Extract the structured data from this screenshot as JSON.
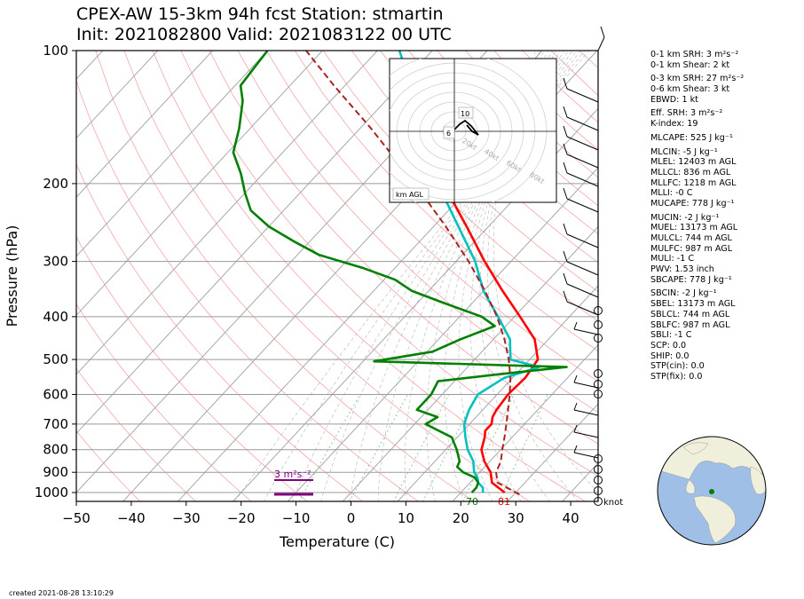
{
  "header": {
    "title_line1": "CPEX-AW 15-3km  94h fcst  Station: stmartin",
    "title_line2": "Init: 2021082800  Valid: 2021083122 00 UTC"
  },
  "chart_data": {
    "type": "skew-t",
    "xlabel": "Temperature (C)",
    "ylabel": "Pressure (hPa)",
    "xlim": [
      -50,
      45
    ],
    "ylim": [
      1050,
      100
    ],
    "y_scale": "log",
    "x_ticks": [
      "−50",
      "−40",
      "−30",
      "−20",
      "−10",
      "0",
      "10",
      "20",
      "30",
      "40"
    ],
    "y_ticks": [
      "100",
      "200",
      "300",
      "400",
      "500",
      "600",
      "700",
      "800",
      "900",
      "1000"
    ],
    "y_tick_values": [
      100,
      200,
      300,
      400,
      500,
      600,
      700,
      800,
      900,
      1000
    ],
    "series": [
      {
        "key": "temperature",
        "color": "#ff0000",
        "points": [
          [
            1000,
            28
          ],
          [
            975,
            26
          ],
          [
            950,
            24
          ],
          [
            925,
            23
          ],
          [
            900,
            22
          ],
          [
            875,
            20.5
          ],
          [
            850,
            19
          ],
          [
            800,
            16.5
          ],
          [
            750,
            15
          ],
          [
            725,
            14
          ],
          [
            700,
            14
          ],
          [
            675,
            13
          ],
          [
            650,
            12.5
          ],
          [
            600,
            12
          ],
          [
            550,
            12.3
          ],
          [
            500,
            11.5
          ],
          [
            450,
            7.5
          ],
          [
            400,
            1
          ],
          [
            350,
            -6.5
          ],
          [
            300,
            -14.8
          ],
          [
            250,
            -24
          ],
          [
            200,
            -35.5
          ]
        ]
      },
      {
        "key": "virtual_temperature",
        "color": "#00c0c0",
        "points": [
          [
            1000,
            24
          ],
          [
            975,
            23.2
          ],
          [
            950,
            21.5
          ],
          [
            925,
            20.5
          ],
          [
            900,
            19
          ],
          [
            875,
            18
          ],
          [
            850,
            17
          ],
          [
            800,
            14
          ],
          [
            750,
            11.5
          ],
          [
            700,
            9
          ],
          [
            650,
            7.5
          ],
          [
            600,
            6.5
          ],
          [
            550,
            8.5
          ],
          [
            520,
            13
          ],
          [
            500,
            6.5
          ],
          [
            450,
            3
          ],
          [
            400,
            -3
          ],
          [
            350,
            -10
          ],
          [
            300,
            -16.5
          ],
          [
            250,
            -25.5
          ],
          [
            200,
            -36.5
          ],
          [
            150,
            -49
          ],
          [
            120,
            -58
          ],
          [
            100,
            -66
          ]
        ]
      },
      {
        "key": "dewpoint",
        "color": "#008000",
        "points": [
          [
            1000,
            22
          ],
          [
            975,
            22
          ],
          [
            950,
            21.5
          ],
          [
            925,
            20
          ],
          [
            900,
            17
          ],
          [
            875,
            15
          ],
          [
            850,
            14.5
          ],
          [
            800,
            12
          ],
          [
            750,
            9
          ],
          [
            700,
            2
          ],
          [
            675,
            3
          ],
          [
            650,
            -2
          ],
          [
            600,
            -2
          ],
          [
            560,
            -3
          ],
          [
            540,
            7
          ],
          [
            520,
            18
          ],
          [
            505,
            -18
          ],
          [
            480,
            -9
          ],
          [
            450,
            -6
          ],
          [
            420,
            -2
          ],
          [
            400,
            -6
          ],
          [
            370,
            -16
          ],
          [
            350,
            -23
          ],
          [
            330,
            -28
          ],
          [
            310,
            -36
          ],
          [
            290,
            -46
          ],
          [
            270,
            -53
          ],
          [
            250,
            -60
          ],
          [
            230,
            -66
          ],
          [
            210,
            -70
          ],
          [
            190,
            -74
          ],
          [
            170,
            -79
          ],
          [
            150,
            -82
          ],
          [
            130,
            -86
          ],
          [
            120,
            -89
          ],
          [
            110,
            -89.5
          ],
          [
            100,
            -90
          ]
        ]
      },
      {
        "key": "parcel_profile",
        "color": "#aa2222",
        "dashed": true,
        "points": [
          [
            1010,
            31
          ],
          [
            950,
            25
          ],
          [
            900,
            23
          ],
          [
            850,
            22
          ],
          [
            800,
            20.3
          ],
          [
            750,
            18.6
          ],
          [
            700,
            16.7
          ],
          [
            650,
            14.6
          ],
          [
            600,
            12.3
          ],
          [
            550,
            9.6
          ],
          [
            500,
            6.2
          ],
          [
            450,
            2
          ],
          [
            400,
            -3.2
          ],
          [
            350,
            -9.7
          ],
          [
            300,
            -17.7
          ],
          [
            250,
            -27.8
          ],
          [
            200,
            -40.7
          ],
          [
            150,
            -58
          ],
          [
            120,
            -72
          ],
          [
            100,
            -83
          ]
        ]
      }
    ],
    "surface_labels": {
      "temperature": "81",
      "dewpoint": "70"
    },
    "srh_label": "3 m²s⁻²",
    "wind_units": "knot",
    "hodograph": {
      "ring_labels": [
        "20kt",
        "40kt",
        "60kt",
        "80kt"
      ],
      "point_labels": [
        "10",
        "6"
      ],
      "corner_label": "km AGL"
    },
    "grid": true,
    "legend": "none"
  },
  "stats": {
    "lines": [
      "0-1 km SRH: 3 m²s⁻²",
      "0-1 km Shear: 2 kt",
      "",
      "0-3 km SRH: 27 m²s⁻²",
      "0-6 km Shear: 3 kt",
      "EBWD: 1 kt",
      "",
      "Eff. SRH: 3 m²s⁻²",
      "K-index: 19",
      "",
      "MLCAPE: 525 J kg⁻¹",
      "",
      "MLCIN: -5 J kg⁻¹",
      "MLEL: 12403 m AGL",
      "MLLCL: 836 m AGL",
      "MLLFC: 1218 m AGL",
      "MLLI: -0 C",
      "MUCAPE: 778 J kg⁻¹",
      "",
      "MUCIN: -2 J kg⁻¹",
      "MUEL: 13173 m AGL",
      "MULCL: 744 m AGL",
      "MULFC: 987 m AGL",
      "MULI: -1 C",
      "PWV: 1.53 inch",
      "SBCAPE: 778 J kg⁻¹",
      "",
      "SBCIN: -2 J kg⁻¹",
      "SBEL: 13173 m AGL",
      "SBLCL: 744 m AGL",
      "SBLFC: 987 m AGL",
      "SBLI: -1 C",
      "SCP: 0.0",
      "SHIP: 0.0",
      "STP(cin): 0.0",
      "STP(fix): 0.0"
    ]
  },
  "footer": {
    "created": "created 2021-08-28 13:10:29"
  },
  "colors": {
    "temperature": "#ff0000",
    "dewpoint": "#008000",
    "virtual_temperature": "#00c0c0",
    "parcel": "#aa2222",
    "srh": "#800080",
    "globe_ocean": "#a0bfe6",
    "globe_land": "#efefdc"
  }
}
